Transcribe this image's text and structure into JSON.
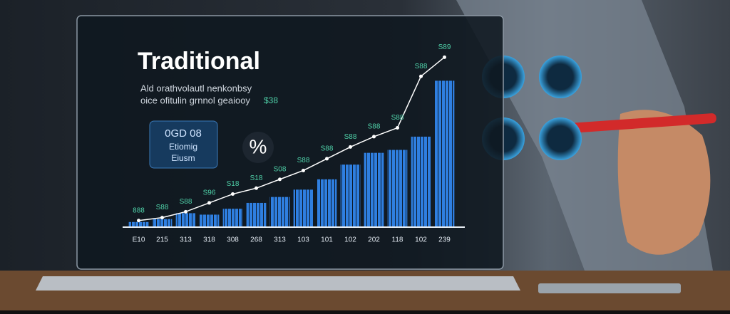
{
  "screen": {
    "title": "Traditional",
    "subtitle": [
      "Ald orathvolautl nenkonbsy",
      "oice ofitulin grnnol geaiooy"
    ],
    "subtitle_tag": "$38",
    "badge": [
      "0GD 08",
      "Etiomig",
      "Eiusm"
    ],
    "symbol": "%"
  },
  "chart_data": {
    "type": "bar",
    "categories": [
      "E10",
      "215",
      "313",
      "318",
      "308",
      "268",
      "313",
      "103",
      "101",
      "102",
      "202",
      "118",
      "102",
      "239"
    ],
    "series": [
      {
        "name": "bars",
        "color": "#2f7fe0",
        "values": [
          3,
          5,
          9,
          8,
          12,
          16,
          20,
          25,
          32,
          42,
          50,
          52,
          61,
          99
        ]
      },
      {
        "name": "trend",
        "color": "#ffffff",
        "values": [
          4,
          6,
          10,
          16,
          22,
          26,
          32,
          38,
          46,
          54,
          61,
          67,
          102,
          115
        ]
      }
    ],
    "annotations": [
      "888",
      "S88",
      "S88",
      "S96",
      "S18",
      "S18",
      "S08",
      "S88",
      "S88",
      "S88",
      "S88",
      "S88",
      "S88",
      "S89"
    ],
    "ylim": [
      0,
      120
    ]
  }
}
